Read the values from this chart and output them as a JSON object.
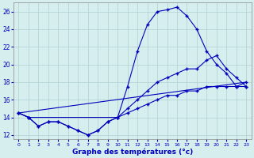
{
  "xlabel": "Graphe des températures (°c)",
  "xlim": [
    -0.5,
    23.5
  ],
  "ylim": [
    11.5,
    27.0
  ],
  "yticks": [
    12,
    14,
    16,
    18,
    20,
    22,
    24,
    26
  ],
  "xticks": [
    0,
    1,
    2,
    3,
    4,
    5,
    6,
    7,
    8,
    9,
    10,
    11,
    12,
    13,
    14,
    15,
    16,
    17,
    18,
    19,
    20,
    21,
    22,
    23
  ],
  "background_color": "#d6efee",
  "line_color": "#0000bb",
  "grid_color": "#b0d0d0",
  "curve1_x": [
    0,
    1,
    2,
    3,
    4,
    5,
    6,
    7,
    8,
    9,
    10,
    11,
    12,
    13,
    14,
    15,
    16,
    17,
    18,
    19,
    20,
    21,
    22,
    23
  ],
  "curve1_y": [
    14.5,
    14.0,
    13.0,
    13.5,
    13.5,
    13.0,
    12.5,
    12.0,
    12.5,
    13.5,
    14.0,
    17.5,
    21.5,
    24.5,
    26.0,
    26.2,
    26.5,
    25.5,
    24.0,
    21.5,
    20.0,
    19.0,
    17.5,
    17.5
  ],
  "curve2_x": [
    0,
    1,
    2,
    3,
    4,
    5,
    6,
    7,
    8,
    9,
    10,
    11,
    12,
    13,
    14,
    15,
    16,
    17,
    18,
    19,
    20,
    21,
    22,
    23
  ],
  "curve2_y": [
    14.5,
    14.0,
    13.0,
    13.5,
    13.5,
    13.0,
    12.5,
    12.0,
    12.5,
    13.5,
    14.0,
    15.0,
    16.0,
    17.0,
    18.0,
    18.5,
    19.0,
    19.5,
    19.5,
    20.5,
    21.0,
    19.5,
    18.5,
    17.5
  ],
  "curve3_x": [
    0,
    1,
    10,
    11,
    12,
    13,
    14,
    15,
    16,
    17,
    18,
    19,
    20,
    21,
    22,
    23
  ],
  "curve3_y": [
    14.5,
    14.0,
    14.0,
    14.5,
    15.0,
    15.5,
    16.0,
    16.5,
    16.5,
    17.0,
    17.0,
    17.5,
    17.5,
    17.5,
    17.5,
    18.0
  ],
  "curve4_x": [
    0,
    23
  ],
  "curve4_y": [
    14.5,
    18.0
  ]
}
